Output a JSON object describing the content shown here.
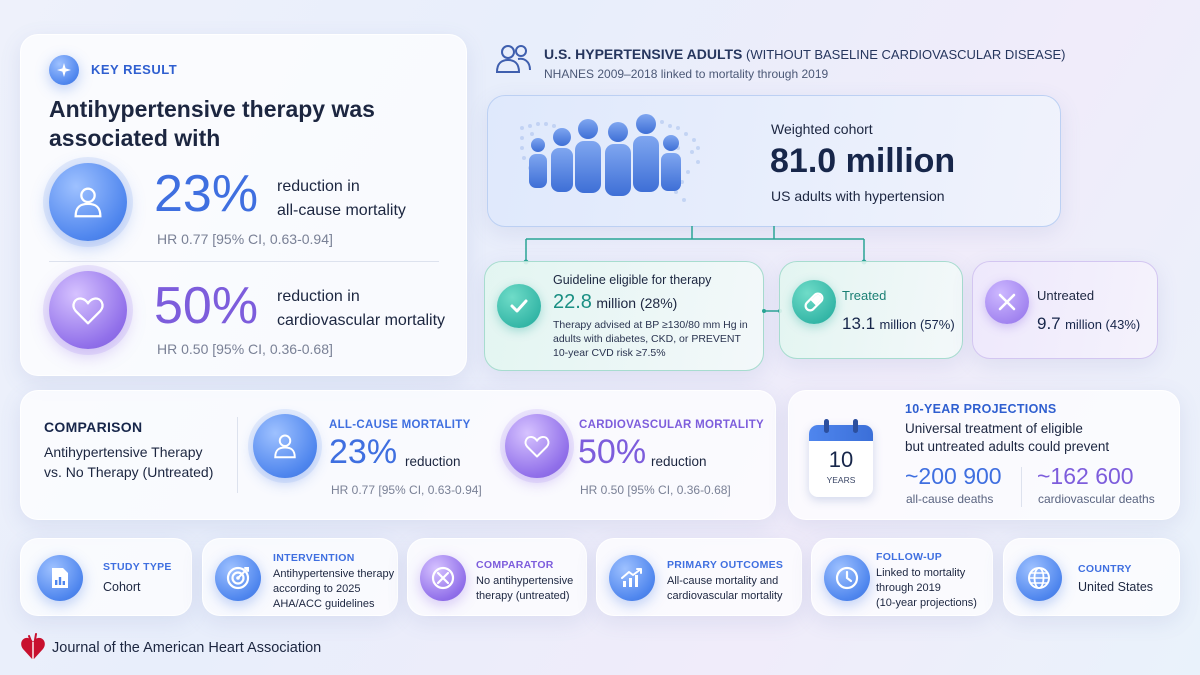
{
  "key_result": {
    "badge": "KEY RESULT",
    "headline": "Antihypertensive therapy was associated with",
    "all_cause": {
      "pct": "23%",
      "text1": "reduction in",
      "text2": "all-cause mortality",
      "hr": "HR 0.77 [95% CI, 0.63-0.94]"
    },
    "cv": {
      "pct": "50%",
      "text1": "reduction in",
      "text2": "cardiovascular mortality",
      "hr": "HR 0.50 [95% CI, 0.36-0.68]"
    }
  },
  "population": {
    "title_bold": "U.S. HYPERTENSIVE ADULTS",
    "title_rest": "(WITHOUT BASELINE CARDIOVASCULAR DISEASE)",
    "subtitle": "NHANES 2009–2018 linked to mortality through 2019",
    "cohort_label": "Weighted cohort",
    "cohort_value": "81.0 million",
    "cohort_desc": "US adults with hypertension"
  },
  "eligible": {
    "label": "Guideline eligible for therapy",
    "value_num": "22.8",
    "value_rest": "million (28%)",
    "desc": "Therapy advised at BP ≥130/80 mm Hg in adults with diabetes, CKD, or PREVENT 10-year CVD risk ≥7.5%"
  },
  "treated": {
    "label": "Treated",
    "value_num": "13.1",
    "value_rest": "million (57%)"
  },
  "untreated": {
    "label": "Untreated",
    "value_num": "9.7",
    "value_rest": "million (43%)"
  },
  "comparison": {
    "title": "COMPARISON",
    "line1": "Antihypertensive Therapy",
    "line2": "vs. No Therapy (Untreated)",
    "all_cause": {
      "label": "ALL-CAUSE MORTALITY",
      "pct": "23%",
      "word": "reduction",
      "hr": "HR 0.77 [95% CI, 0.63-0.94]"
    },
    "cv": {
      "label": "CARDIOVASCULAR MORTALITY",
      "pct": "50%",
      "word": "reduction",
      "hr": "HR 0.50 [95% CI, 0.36-0.68]"
    }
  },
  "projections": {
    "title": "10-YEAR PROJECTIONS",
    "line1": "Universal treatment of eligible",
    "line2": "but untreated adults could prevent",
    "calendar_num": "10",
    "calendar_word": "YEARS",
    "deaths_all": "~200 900",
    "deaths_all_label": "all-cause deaths",
    "deaths_cv": "~162 600",
    "deaths_cv_label": "cardiovascular deaths"
  },
  "details": [
    {
      "title": "STUDY TYPE",
      "lines": [
        "Cohort"
      ],
      "icon": "bar-chart-document-icon"
    },
    {
      "title": "INTERVENTION",
      "lines": [
        "Antihypertensive therapy",
        "according to 2025",
        "AHA/ACC guidelines"
      ],
      "icon": "target-icon"
    },
    {
      "title": "COMPARATOR",
      "lines": [
        "No antihypertensive",
        "therapy (untreated)"
      ],
      "icon": "no-treatment-icon"
    },
    {
      "title": "PRIMARY OUTCOMES",
      "lines": [
        "All-cause mortality and",
        "cardiovascular mortality"
      ],
      "icon": "trend-chart-icon"
    },
    {
      "title": "FOLLOW-UP",
      "lines": [
        "Linked to mortality",
        "through 2019",
        "(10-year projections)"
      ],
      "icon": "clock-icon"
    },
    {
      "title": "COUNTRY",
      "lines": [
        "United States"
      ],
      "icon": "globe-icon"
    }
  ],
  "footer": {
    "journal": "Journal of the American Heart Association"
  },
  "colors": {
    "blue": "#3f6fe0",
    "purple": "#7d5ddc",
    "teal": "#1ea89a"
  }
}
